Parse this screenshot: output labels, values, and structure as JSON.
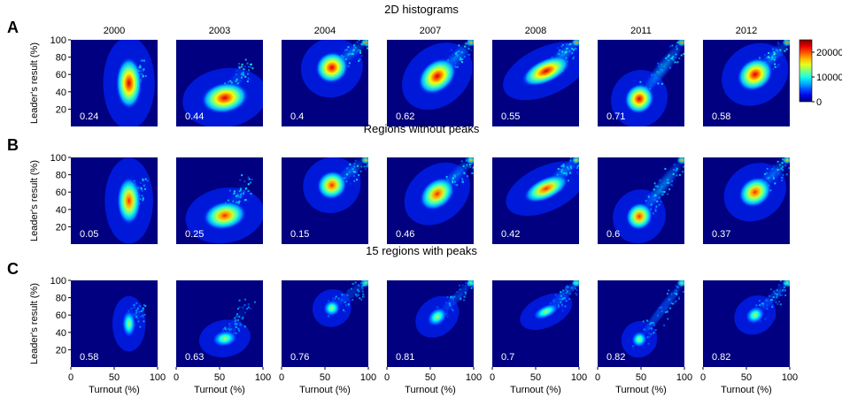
{
  "chart_data": {
    "type": "heatmap",
    "rows": [
      {
        "letter": "A",
        "title": "2D histograms",
        "corr": [
          "0.24",
          "0.44",
          "0.4",
          "0.62",
          "0.55",
          "0.71",
          "0.58"
        ]
      },
      {
        "letter": "B",
        "title": "Regions without peaks",
        "corr": [
          "0.05",
          "0.25",
          "0.15",
          "0.46",
          "0.42",
          "0.6",
          "0.37"
        ]
      },
      {
        "letter": "C",
        "title": "15 regions with peaks",
        "corr": [
          "0.58",
          "0.63",
          "0.76",
          "0.81",
          "0.7",
          "0.82",
          "0.82"
        ]
      }
    ],
    "years": [
      "2000",
      "2003",
      "2004",
      "2007",
      "2008",
      "2011",
      "2012"
    ],
    "xlabel": "Turnout (%)",
    "ylabel": "Leader's result (%)",
    "xlim": [
      0,
      100
    ],
    "ylim": [
      0,
      100
    ],
    "x_ticks": [
      "0",
      "50",
      "100"
    ],
    "y_ticks": [
      "20",
      "40",
      "60",
      "80",
      "100"
    ],
    "colorbar": {
      "ticks": [
        "0",
        "10000",
        "20000"
      ],
      "max": 25000,
      "colormap": "jet"
    },
    "cluster_centers": {
      "2000": {
        "turnout": 67,
        "result": 50
      },
      "2003": {
        "turnout": 56,
        "result": 33
      },
      "2004": {
        "turnout": 58,
        "result": 68
      },
      "2007": {
        "turnout": 58,
        "result": 58
      },
      "2008": {
        "turnout": 62,
        "result": 64
      },
      "2011": {
        "turnout": 48,
        "result": 32
      },
      "2012": {
        "turnout": 60,
        "result": 60
      }
    },
    "peak_cluster_at_100_turnout": true
  }
}
